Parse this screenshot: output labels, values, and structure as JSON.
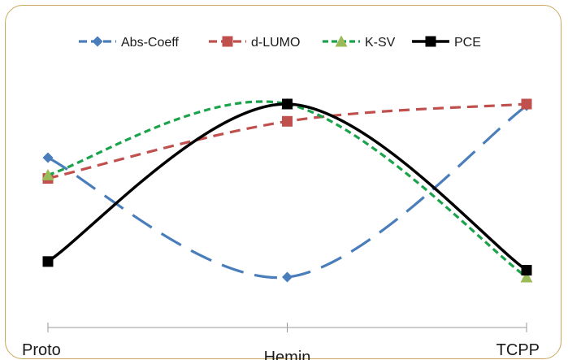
{
  "chart_data": {
    "type": "line",
    "smooth": true,
    "categories": [
      "Proto",
      "Hemin",
      "TCPP"
    ],
    "legend_position": "top",
    "grid": false,
    "y_axis_visible": false,
    "series": [
      {
        "name": "Abs-Coeff",
        "values": [
          0.69,
          0.0,
          0.99
        ],
        "color": "#4a7ebb",
        "dash": "long-dash",
        "marker": "diamond"
      },
      {
        "name": "d-LUMO",
        "values": [
          0.57,
          0.9,
          1.0
        ],
        "color": "#c0504d",
        "dash": "dash",
        "marker": "square"
      },
      {
        "name": "K-SV",
        "values": [
          0.59,
          1.0,
          0.0
        ],
        "color": "#1aa34a",
        "dash": "short-dash",
        "marker": "triangle",
        "marker_color": "#9bbb59"
      },
      {
        "name": "PCE",
        "values": [
          0.09,
          1.0,
          0.04
        ],
        "color": "#000000",
        "dash": "solid",
        "marker": "square"
      }
    ]
  }
}
